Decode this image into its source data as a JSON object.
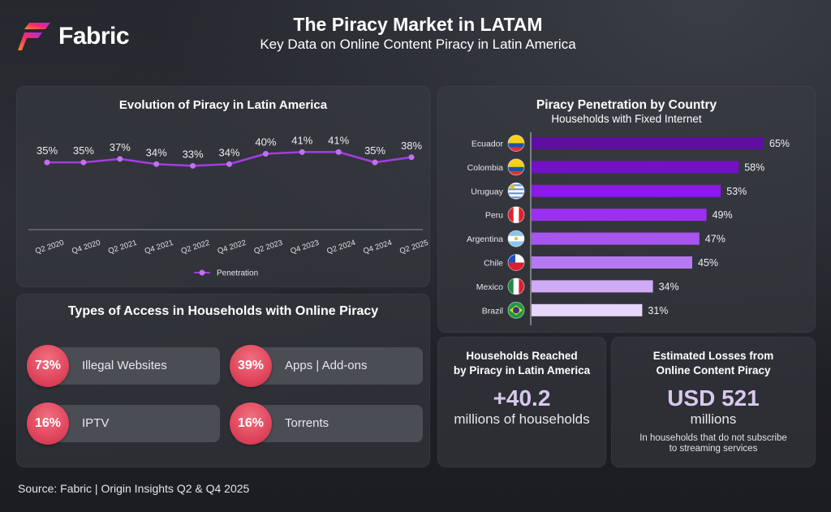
{
  "brand": {
    "name": "Fabric"
  },
  "header": {
    "title": "The Piracy Market in LATAM",
    "subtitle": "Key Data on Online Content Piracy in Latin America"
  },
  "chart_data": [
    {
      "type": "line",
      "title": "Evolution of Piracy in Latin America",
      "categories": [
        "Q2 2020",
        "Q4 2020",
        "Q2 2021",
        "Q4 2021",
        "Q2 2022",
        "Q4 2022",
        "Q2 2023",
        "Q4 2023",
        "Q2 2024",
        "Q4 2024",
        "Q2 2025"
      ],
      "series": [
        {
          "name": "Penetration",
          "values": [
            35,
            35,
            37,
            34,
            33,
            34,
            40,
            41,
            41,
            35,
            38
          ],
          "color": "#a33de0"
        }
      ],
      "labels": [
        "35%",
        "35%",
        "37%",
        "34%",
        "33%",
        "34%",
        "40%",
        "41%",
        "41%",
        "35%",
        "38%"
      ],
      "legend": "bottom",
      "ylim": [
        0,
        55
      ],
      "xlabel": "",
      "ylabel": ""
    },
    {
      "type": "bar",
      "orientation": "horizontal",
      "title": "Piracy Penetration by Country",
      "subtitle": "Households with Fixed Internet",
      "categories": [
        "Ecuador",
        "Colombia",
        "Uruguay",
        "Peru",
        "Argentina",
        "Chile",
        "Mexico",
        "Brazil"
      ],
      "values": [
        65,
        58,
        53,
        49,
        47,
        45,
        34,
        31
      ],
      "labels": [
        "65%",
        "58%",
        "53%",
        "49%",
        "47%",
        "45%",
        "34%",
        "31%"
      ],
      "colors": [
        "#5e0fa0",
        "#7312c4",
        "#8a1ae6",
        "#9b30f0",
        "#a855f0",
        "#b57af2",
        "#cfaaf5",
        "#e6d6fa"
      ],
      "xlim": [
        0,
        65
      ]
    }
  ],
  "access_types": {
    "title": "Types of Access in Households with Online Piracy",
    "items": [
      {
        "percent": "73%",
        "label": "Illegal Websites"
      },
      {
        "percent": "39%",
        "label": "Apps | Add-ons"
      },
      {
        "percent": "16%",
        "label": "IPTV"
      },
      {
        "percent": "16%",
        "label": "Torrents"
      }
    ]
  },
  "households": {
    "title_line1": "Households Reached",
    "title_line2": "by Piracy in Latin America",
    "value": "+40.2",
    "unit": "millions of households"
  },
  "losses": {
    "title_line1": "Estimated Losses from",
    "title_line2": "Online Content Piracy",
    "value": "USD 521",
    "unit": "millions",
    "note_line1": "In households that do not subscribe",
    "note_line2": "to streaming services"
  },
  "source": "Source: Fabric | Origin Insights Q2 & Q4 2025"
}
